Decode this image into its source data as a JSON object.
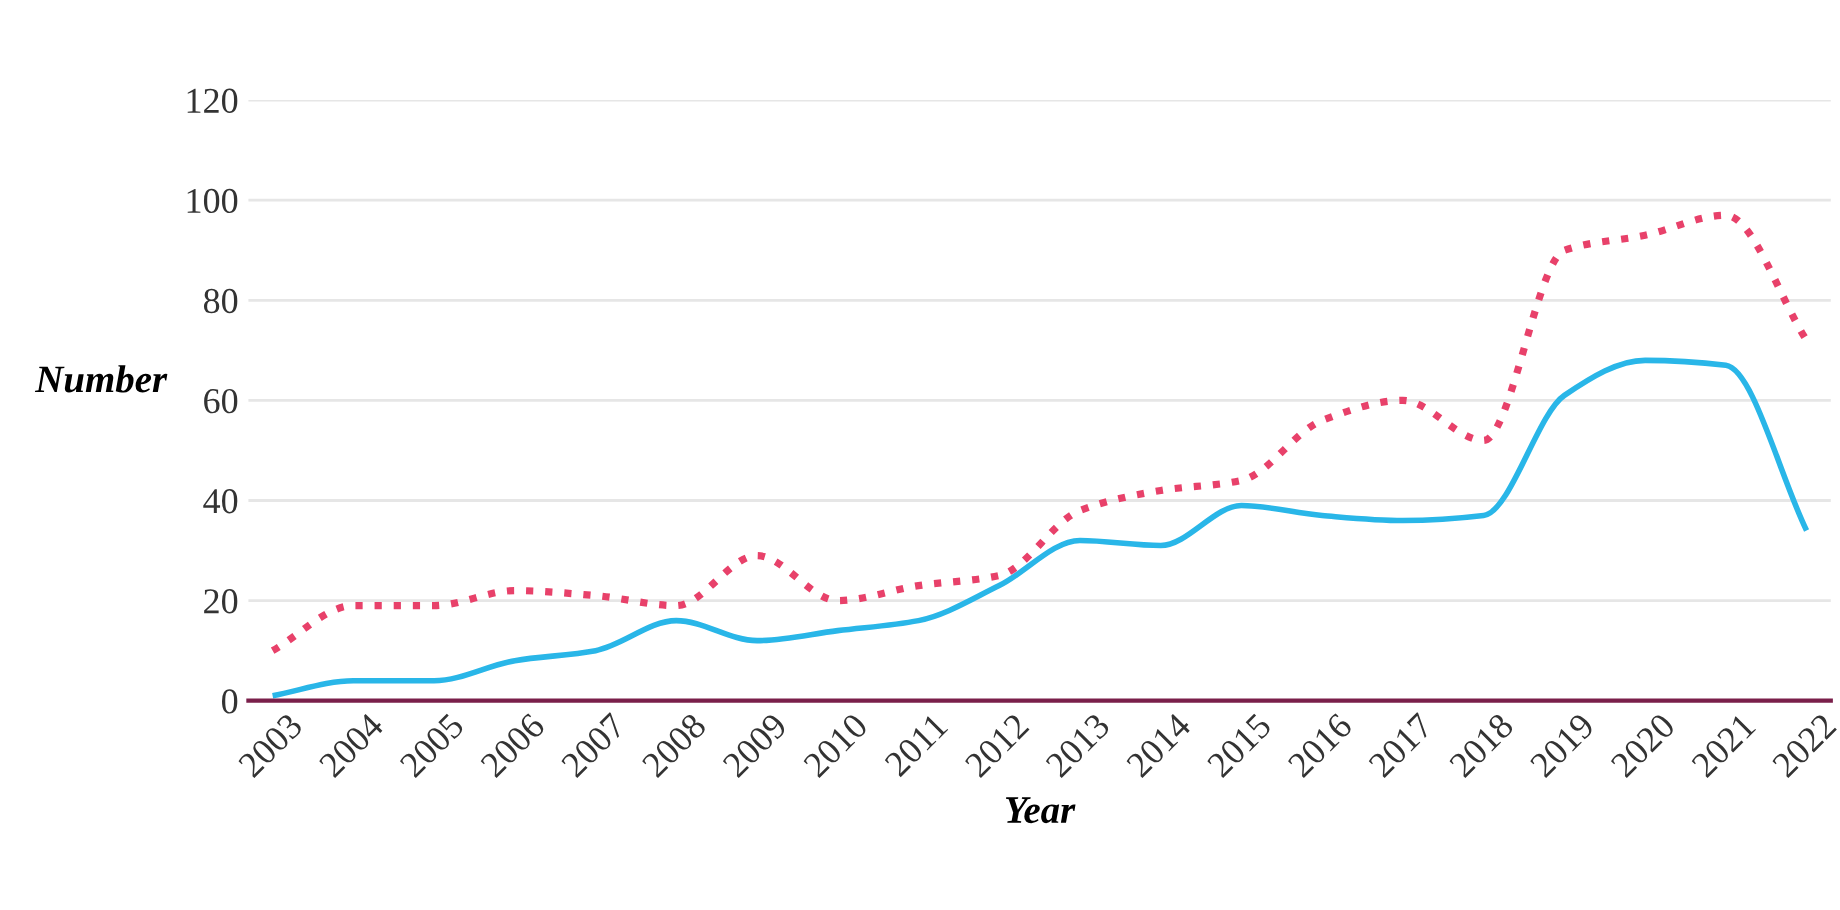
{
  "chart_data": {
    "type": "line",
    "xlabel": "Year",
    "ylabel": "Number",
    "categories": [
      "2003",
      "2004",
      "2005",
      "2006",
      "2007",
      "2008",
      "2009",
      "2010",
      "2011",
      "2012",
      "2013",
      "2014",
      "2015",
      "2016",
      "2017",
      "2018",
      "2019",
      "2020",
      "2021",
      "2022"
    ],
    "series": [
      {
        "color": "#29b6e8",
        "line_style": "solid",
        "values": [
          1,
          4,
          4,
          8,
          10,
          16,
          12,
          14,
          16,
          23,
          32,
          31,
          39,
          37,
          36,
          37,
          61,
          68,
          67,
          34
        ]
      },
      {
        "color": "#e8416a",
        "line_style": "dotted",
        "values": [
          10,
          19,
          19,
          22,
          21,
          19,
          29,
          20,
          23,
          25,
          38,
          42,
          44,
          56,
          60,
          52,
          90,
          93,
          97,
          72
        ]
      }
    ],
    "ylim": [
      0,
      120
    ],
    "yticks": [
      0,
      20,
      40,
      60,
      80,
      100,
      120
    ],
    "grid": "y",
    "marker": "none"
  }
}
